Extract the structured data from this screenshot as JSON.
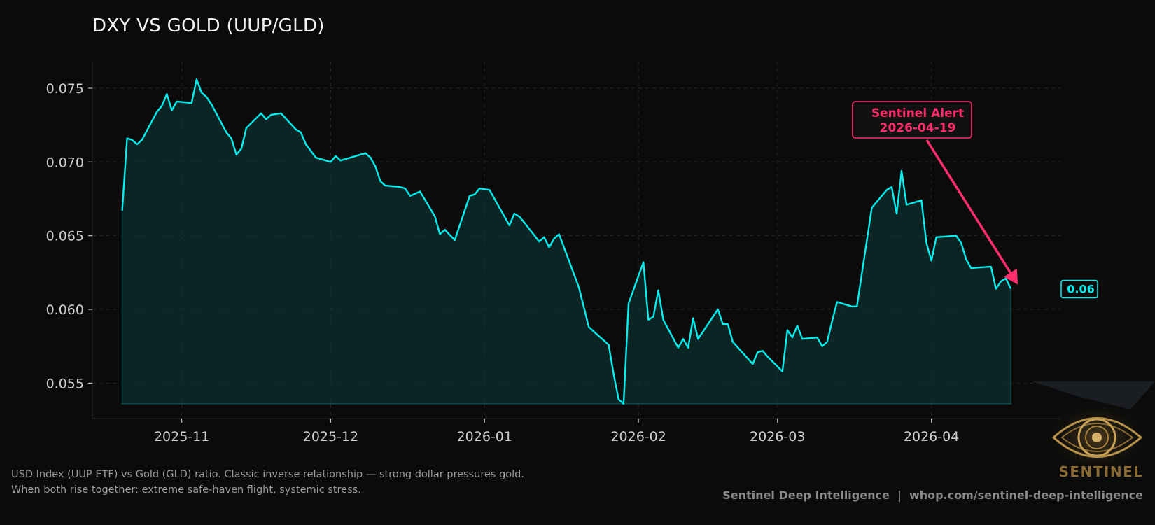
{
  "chart_data": {
    "type": "area",
    "title": "DXY VS GOLD (UUP/GLD)",
    "xlabel": "",
    "ylabel": "",
    "x_ticks": [
      "2025-11",
      "2025-12",
      "2026-01",
      "2026-02",
      "2026-03",
      "2026-04"
    ],
    "y_ticks": [
      "0.055",
      "0.060",
      "0.065",
      "0.070",
      "0.075"
    ],
    "xlim": [
      "2025-10-14",
      "2026-04-27"
    ],
    "ylim": [
      0.0526,
      0.0768
    ],
    "fill_baseline": 0.0536,
    "grid": true,
    "series": [
      {
        "color": "#00f0f0",
        "points": [
          [
            "2025-10-20",
            0.0667
          ],
          [
            "2025-10-21",
            0.0716
          ],
          [
            "2025-10-22",
            0.0715
          ],
          [
            "2025-10-23",
            0.0712
          ],
          [
            "2025-10-24",
            0.0715
          ],
          [
            "2025-10-27",
            0.0734
          ],
          [
            "2025-10-28",
            0.0738
          ],
          [
            "2025-10-29",
            0.0746
          ],
          [
            "2025-10-30",
            0.0735
          ],
          [
            "2025-10-31",
            0.0741
          ],
          [
            "2025-11-03",
            0.074
          ],
          [
            "2025-11-04",
            0.0756
          ],
          [
            "2025-11-05",
            0.0747
          ],
          [
            "2025-11-06",
            0.0744
          ],
          [
            "2025-11-07",
            0.0739
          ],
          [
            "2025-11-10",
            0.072
          ],
          [
            "2025-11-11",
            0.0716
          ],
          [
            "2025-11-12",
            0.0705
          ],
          [
            "2025-11-13",
            0.0709
          ],
          [
            "2025-11-14",
            0.0723
          ],
          [
            "2025-11-17",
            0.0733
          ],
          [
            "2025-11-18",
            0.0729
          ],
          [
            "2025-11-19",
            0.0732
          ],
          [
            "2025-11-21",
            0.0733
          ],
          [
            "2025-11-24",
            0.0722
          ],
          [
            "2025-11-25",
            0.072
          ],
          [
            "2025-11-26",
            0.0712
          ],
          [
            "2025-11-28",
            0.0703
          ],
          [
            "2025-12-01",
            0.07
          ],
          [
            "2025-12-02",
            0.0704
          ],
          [
            "2025-12-03",
            0.0701
          ],
          [
            "2025-12-05",
            0.0703
          ],
          [
            "2025-12-08",
            0.0706
          ],
          [
            "2025-12-09",
            0.0703
          ],
          [
            "2025-12-10",
            0.0697
          ],
          [
            "2025-12-11",
            0.0687
          ],
          [
            "2025-12-12",
            0.0684
          ],
          [
            "2025-12-15",
            0.0683
          ],
          [
            "2025-12-16",
            0.0682
          ],
          [
            "2025-12-17",
            0.0677
          ],
          [
            "2025-12-19",
            0.068
          ],
          [
            "2025-12-22",
            0.0663
          ],
          [
            "2025-12-23",
            0.0651
          ],
          [
            "2025-12-24",
            0.0654
          ],
          [
            "2025-12-26",
            0.0647
          ],
          [
            "2025-12-29",
            0.0677
          ],
          [
            "2025-12-30",
            0.0678
          ],
          [
            "2025-12-31",
            0.0682
          ],
          [
            "2026-01-02",
            0.0681
          ],
          [
            "2026-01-05",
            0.0663
          ],
          [
            "2026-01-06",
            0.0657
          ],
          [
            "2026-01-07",
            0.0665
          ],
          [
            "2026-01-08",
            0.0663
          ],
          [
            "2026-01-09",
            0.0659
          ],
          [
            "2026-01-12",
            0.0646
          ],
          [
            "2026-01-13",
            0.0649
          ],
          [
            "2026-01-14",
            0.0642
          ],
          [
            "2026-01-15",
            0.0648
          ],
          [
            "2026-01-16",
            0.0651
          ],
          [
            "2026-01-20",
            0.0615
          ],
          [
            "2026-01-22",
            0.0588
          ],
          [
            "2026-01-26",
            0.0576
          ],
          [
            "2026-01-27",
            0.0556
          ],
          [
            "2026-01-28",
            0.0539
          ],
          [
            "2026-01-29",
            0.0536
          ],
          [
            "2026-01-30",
            0.0604
          ],
          [
            "2026-02-02",
            0.0632
          ],
          [
            "2026-02-03",
            0.0593
          ],
          [
            "2026-02-04",
            0.0595
          ],
          [
            "2026-02-05",
            0.0613
          ],
          [
            "2026-02-06",
            0.0593
          ],
          [
            "2026-02-09",
            0.0574
          ],
          [
            "2026-02-10",
            0.058
          ],
          [
            "2026-02-11",
            0.0574
          ],
          [
            "2026-02-12",
            0.0594
          ],
          [
            "2026-02-13",
            0.058
          ],
          [
            "2026-02-17",
            0.06
          ],
          [
            "2026-02-18",
            0.059
          ],
          [
            "2026-02-19",
            0.059
          ],
          [
            "2026-02-20",
            0.0578
          ],
          [
            "2026-02-24",
            0.0563
          ],
          [
            "2026-02-25",
            0.0571
          ],
          [
            "2026-02-26",
            0.0572
          ],
          [
            "2026-02-27",
            0.0568
          ],
          [
            "2026-03-02",
            0.0558
          ],
          [
            "2026-03-03",
            0.0586
          ],
          [
            "2026-03-04",
            0.0581
          ],
          [
            "2026-03-05",
            0.0589
          ],
          [
            "2026-03-06",
            0.058
          ],
          [
            "2026-03-09",
            0.0581
          ],
          [
            "2026-03-10",
            0.0575
          ],
          [
            "2026-03-11",
            0.0578
          ],
          [
            "2026-03-12",
            0.0592
          ],
          [
            "2026-03-13",
            0.0605
          ],
          [
            "2026-03-16",
            0.0602
          ],
          [
            "2026-03-17",
            0.0602
          ],
          [
            "2026-03-20",
            0.0669
          ],
          [
            "2026-03-23",
            0.0681
          ],
          [
            "2026-03-24",
            0.0683
          ],
          [
            "2026-03-25",
            0.0665
          ],
          [
            "2026-03-26",
            0.0694
          ],
          [
            "2026-03-27",
            0.0671
          ],
          [
            "2026-03-30",
            0.0674
          ],
          [
            "2026-03-31",
            0.0645
          ],
          [
            "2026-04-01",
            0.0633
          ],
          [
            "2026-04-02",
            0.0649
          ],
          [
            "2026-04-06",
            0.065
          ],
          [
            "2026-04-07",
            0.0645
          ],
          [
            "2026-04-08",
            0.0634
          ],
          [
            "2026-04-09",
            0.0628
          ],
          [
            "2026-04-13",
            0.0629
          ],
          [
            "2026-04-14",
            0.0614
          ],
          [
            "2026-04-15",
            0.0619
          ],
          [
            "2026-04-16",
            0.0621
          ],
          [
            "2026-04-17",
            0.0614
          ]
        ]
      }
    ],
    "annotation": {
      "line1": "Sentinel Alert",
      "line2": "2026-04-19",
      "color": "#ff2d6b",
      "target": [
        "2026-04-17",
        0.0614
      ]
    },
    "last_value_label": "0.06",
    "last_value": 0.0614
  },
  "caption": {
    "line1": "USD Index (UUP ETF) vs Gold (GLD) ratio. Classic inverse relationship — strong dollar pressures gold.",
    "line2": "When both rise together: extreme safe-haven flight, systemic stress."
  },
  "footer": "Sentinel Deep Intelligence  |  whop.com/sentinel-deep-intelligence",
  "logo": {
    "icon": "eye-icon",
    "text": "SENTINEL",
    "color": "#b8924a"
  }
}
